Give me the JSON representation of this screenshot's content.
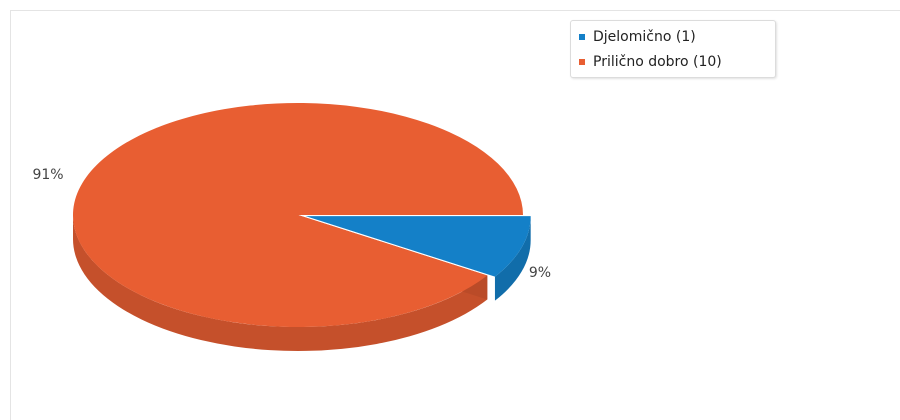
{
  "chart_data": {
    "type": "pie",
    "title": "",
    "slices": [
      {
        "label": "Djelomično (1)",
        "value": 1,
        "percent_label": "9%",
        "color": "#1480c8"
      },
      {
        "label": "Prilično dobro (10)",
        "value": 10,
        "percent_label": "91%",
        "color": "#e85e32"
      }
    ],
    "legend_position": "top-right",
    "three_d": true
  }
}
